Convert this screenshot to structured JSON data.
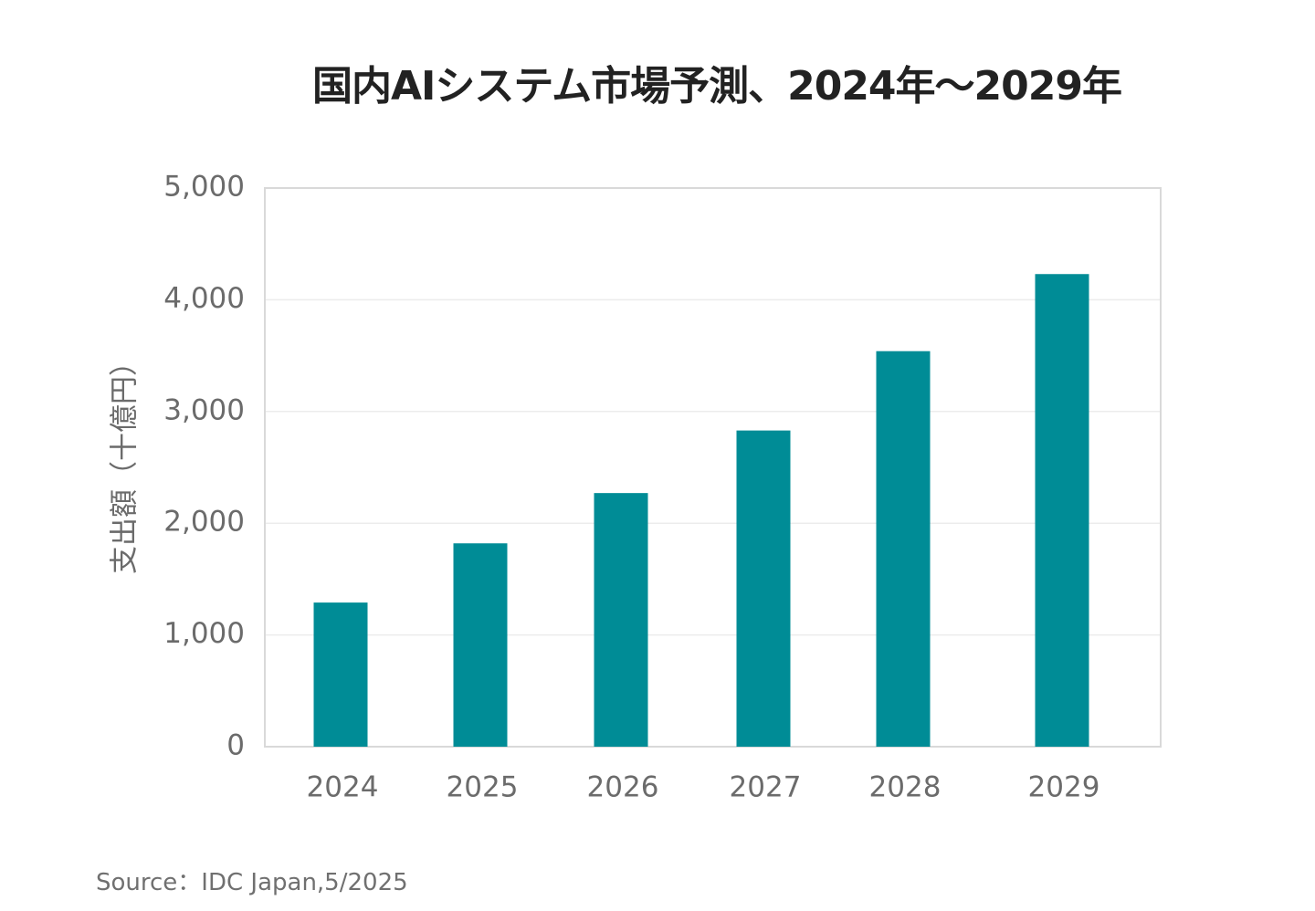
{
  "chart_data": {
    "type": "bar",
    "title": "国内AIシステム市場予測、2024年〜2029年",
    "xlabel": "",
    "ylabel": "支出額（十億円）",
    "categories": [
      "2024",
      "2025",
      "2026",
      "2027",
      "2028",
      "2029"
    ],
    "values": [
      1290,
      1820,
      2270,
      2830,
      3540,
      4230
    ],
    "ylim": [
      0,
      5000
    ],
    "yticks": [
      0,
      1000,
      2000,
      3000,
      4000,
      5000
    ],
    "ytick_labels": [
      "0",
      "1,000",
      "2,000",
      "3,000",
      "4,000",
      "5,000"
    ],
    "grid": true,
    "legend": "none",
    "bar_color": "#008c96",
    "source": "Source：IDC Japan,5/2025"
  }
}
